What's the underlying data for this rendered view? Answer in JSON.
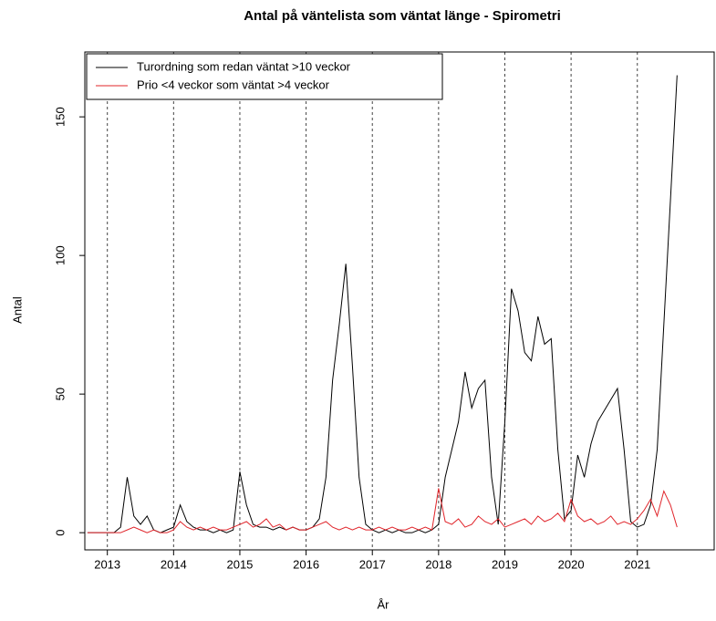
{
  "chart_data": {
    "type": "line",
    "title": "Antal på väntelista som väntat länge - Spirometri",
    "x_label": "År",
    "y_label": "Antal",
    "x": [
      2012.7,
      2012.8,
      2012.9,
      2013.0,
      2013.1,
      2013.2,
      2013.3,
      2013.4,
      2013.5,
      2013.6,
      2013.7,
      2013.8,
      2013.9,
      2014.0,
      2014.1,
      2014.2,
      2014.3,
      2014.4,
      2014.5,
      2014.6,
      2014.7,
      2014.8,
      2014.9,
      2015.0,
      2015.1,
      2015.2,
      2015.3,
      2015.4,
      2015.5,
      2015.6,
      2015.7,
      2015.8,
      2015.9,
      2016.0,
      2016.1,
      2016.2,
      2016.3,
      2016.4,
      2016.5,
      2016.6,
      2016.7,
      2016.8,
      2016.9,
      2017.0,
      2017.1,
      2017.2,
      2017.3,
      2017.4,
      2017.5,
      2017.6,
      2017.7,
      2017.8,
      2017.9,
      2018.0,
      2018.1,
      2018.2,
      2018.3,
      2018.4,
      2018.5,
      2018.6,
      2018.7,
      2018.8,
      2018.9,
      2019.0,
      2019.1,
      2019.2,
      2019.3,
      2019.4,
      2019.5,
      2019.6,
      2019.7,
      2019.8,
      2019.9,
      2020.0,
      2020.1,
      2020.2,
      2020.3,
      2020.4,
      2020.5,
      2020.6,
      2020.7,
      2020.8,
      2020.9,
      2021.0,
      2021.1,
      2021.2,
      2021.3,
      2021.4,
      2021.5,
      2021.6
    ],
    "series": [
      {
        "name": "Turordning som redan väntat >10 veckor",
        "color": "#000000",
        "values": [
          0,
          0,
          0,
          0,
          0,
          2,
          20,
          6,
          3,
          6,
          1,
          0,
          1,
          2,
          10,
          4,
          2,
          1,
          1,
          0,
          1,
          0,
          1,
          22,
          10,
          3,
          2,
          2,
          1,
          2,
          1,
          2,
          1,
          1,
          2,
          5,
          20,
          55,
          75,
          97,
          60,
          20,
          3,
          1,
          0,
          1,
          0,
          1,
          0,
          0,
          1,
          0,
          1,
          3,
          20,
          30,
          40,
          58,
          45,
          52,
          55,
          20,
          3,
          40,
          88,
          80,
          65,
          62,
          78,
          68,
          70,
          30,
          5,
          8,
          28,
          20,
          32,
          40,
          44,
          48,
          52,
          30,
          4,
          2,
          3,
          10,
          30,
          75,
          120,
          165
        ]
      },
      {
        "name": "Prio <4 veckor som väntat >4 veckor",
        "color": "#e0242a",
        "values": [
          0,
          0,
          0,
          0,
          0,
          0,
          1,
          2,
          1,
          0,
          1,
          0,
          0,
          1,
          4,
          2,
          1,
          2,
          1,
          2,
          1,
          1,
          2,
          3,
          4,
          2,
          3,
          5,
          2,
          3,
          1,
          2,
          1,
          1,
          2,
          3,
          4,
          2,
          1,
          2,
          1,
          2,
          1,
          1,
          2,
          1,
          2,
          1,
          1,
          2,
          1,
          2,
          1,
          16,
          4,
          3,
          5,
          2,
          3,
          6,
          4,
          3,
          5,
          2,
          3,
          4,
          5,
          3,
          6,
          4,
          5,
          7,
          4,
          12,
          6,
          4,
          5,
          3,
          4,
          6,
          3,
          4,
          3,
          5,
          8,
          12,
          6,
          15,
          10,
          2
        ]
      }
    ],
    "xlim": [
      2012.66,
      2022.16
    ],
    "xticks": [
      2013,
      2014,
      2015,
      2016,
      2017,
      2018,
      2019,
      2020,
      2021
    ],
    "ylim": [
      -6.2,
      173.4
    ],
    "yticks": [
      0,
      50,
      100,
      150
    ],
    "grid": true,
    "legend": "topleft"
  }
}
